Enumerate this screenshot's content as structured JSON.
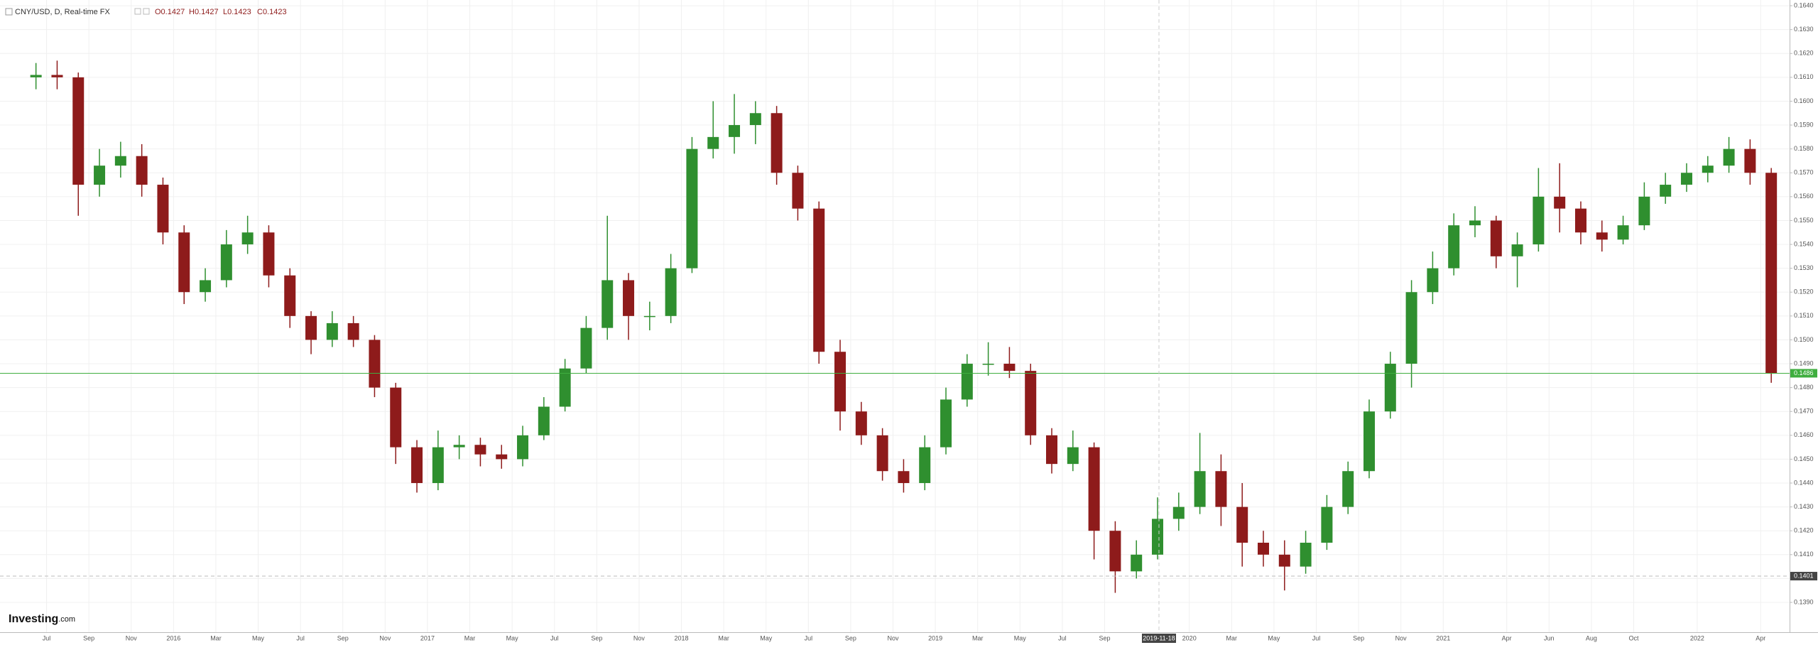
{
  "chart_data": {
    "type": "candlestick",
    "symbol": "CNY/USD, D, Real-time FX",
    "ohlc_legend": [
      "O0.1427",
      "H0.1427",
      "L0.1423",
      "C0.1423"
    ],
    "logo": {
      "brand": "Investing",
      "suffix": ".com"
    },
    "up_color": "#2f8f2f",
    "down_color": "#8e1b1b",
    "grid": true,
    "xlim": [
      "2015-04-25",
      "2022-05-12"
    ],
    "ylim": [
      0.13775,
      0.16424
    ],
    "x": [
      "2015-06",
      "2015-07",
      "2015-08",
      "2015-09",
      "2015-10",
      "2015-11",
      "2015-12",
      "2016-01",
      "2016-02",
      "2016-03",
      "2016-04",
      "2016-05",
      "2016-06",
      "2016-07",
      "2016-08",
      "2016-09",
      "2016-10",
      "2016-11",
      "2016-12",
      "2017-01",
      "2017-02",
      "2017-03",
      "2017-04",
      "2017-05",
      "2017-06",
      "2017-07",
      "2017-08",
      "2017-09",
      "2017-10",
      "2017-11",
      "2017-12",
      "2018-01",
      "2018-02",
      "2018-03",
      "2018-04",
      "2018-05",
      "2018-06",
      "2018-07",
      "2018-08",
      "2018-09",
      "2018-10",
      "2018-11",
      "2018-12",
      "2019-01",
      "2019-02",
      "2019-03",
      "2019-04",
      "2019-05",
      "2019-06",
      "2019-07",
      "2019-08",
      "2019-09",
      "2019-10",
      "2019-11",
      "2019-12",
      "2020-01",
      "2020-02",
      "2020-03",
      "2020-04",
      "2020-05",
      "2020-06",
      "2020-07",
      "2020-08",
      "2020-09",
      "2020-10",
      "2020-11",
      "2020-12",
      "2021-01",
      "2021-02",
      "2021-03",
      "2021-04",
      "2021-05",
      "2021-06",
      "2021-07",
      "2021-08",
      "2021-09",
      "2021-10",
      "2021-11",
      "2021-12",
      "2022-01",
      "2022-02",
      "2022-03",
      "2022-04"
    ],
    "open": [
      0.161,
      0.1611,
      0.161,
      0.1565,
      0.1573,
      0.1577,
      0.1565,
      0.1545,
      0.152,
      0.1525,
      0.154,
      0.1545,
      0.1527,
      0.151,
      0.15,
      0.1507,
      0.15,
      0.148,
      0.1455,
      0.144,
      0.1455,
      0.1456,
      0.1452,
      0.145,
      0.146,
      0.1472,
      0.1488,
      0.1505,
      0.1525,
      0.151,
      0.151,
      0.153,
      0.158,
      0.1585,
      0.159,
      0.1595,
      0.157,
      0.1555,
      0.1495,
      0.147,
      0.146,
      0.1445,
      0.144,
      0.1455,
      0.1475,
      0.149,
      0.149,
      0.1487,
      0.146,
      0.1448,
      0.1455,
      0.142,
      0.1403,
      0.141,
      0.1425,
      0.143,
      0.1445,
      0.143,
      0.1415,
      0.141,
      0.1405,
      0.1415,
      0.143,
      0.1445,
      0.147,
      0.149,
      0.152,
      0.153,
      0.1548,
      0.155,
      0.1535,
      0.154,
      0.156,
      0.1555,
      0.1545,
      0.1542,
      0.1548,
      0.156,
      0.1565,
      0.157,
      0.1573,
      0.158,
      0.157
    ],
    "high": [
      0.1616,
      0.1617,
      0.1612,
      0.158,
      0.1583,
      0.1582,
      0.1568,
      0.1548,
      0.153,
      0.1546,
      0.1552,
      0.1548,
      0.153,
      0.1512,
      0.1512,
      0.151,
      0.1502,
      0.1482,
      0.1458,
      0.1462,
      0.146,
      0.1459,
      0.1456,
      0.1464,
      0.1476,
      0.1492,
      0.151,
      0.1552,
      0.1528,
      0.1516,
      0.1536,
      0.1585,
      0.16,
      0.1603,
      0.16,
      0.1598,
      0.1573,
      0.1558,
      0.15,
      0.1474,
      0.1463,
      0.145,
      0.146,
      0.148,
      0.1494,
      0.1499,
      0.1497,
      0.149,
      0.1463,
      0.1462,
      0.1457,
      0.1424,
      0.1416,
      0.1434,
      0.1436,
      0.1461,
      0.1452,
      0.144,
      0.142,
      0.1416,
      0.142,
      0.1435,
      0.1449,
      0.1475,
      0.1495,
      0.1525,
      0.1537,
      0.1553,
      0.1556,
      0.1552,
      0.1545,
      0.1572,
      0.1574,
      0.1558,
      0.155,
      0.1552,
      0.1566,
      0.157,
      0.1574,
      0.1577,
      0.1585,
      0.1584,
      0.1572
    ],
    "low": [
      0.1605,
      0.1605,
      0.1552,
      0.156,
      0.1568,
      0.156,
      0.154,
      0.1515,
      0.1516,
      0.1522,
      0.1536,
      0.1522,
      0.1505,
      0.1494,
      0.1497,
      0.1497,
      0.1476,
      0.1448,
      0.1436,
      0.1437,
      0.145,
      0.1447,
      0.1446,
      0.1447,
      0.1458,
      0.147,
      0.1486,
      0.15,
      0.15,
      0.1504,
      0.1507,
      0.1528,
      0.1576,
      0.1578,
      0.1582,
      0.1565,
      0.155,
      0.149,
      0.1462,
      0.1456,
      0.1441,
      0.1436,
      0.1437,
      0.1452,
      0.1472,
      0.1485,
      0.1484,
      0.1456,
      0.1444,
      0.1445,
      0.1408,
      0.1394,
      0.14,
      0.1408,
      0.142,
      0.1427,
      0.1422,
      0.1405,
      0.1405,
      0.1395,
      0.1402,
      0.1412,
      0.1427,
      0.1442,
      0.1467,
      0.148,
      0.1515,
      0.1527,
      0.1543,
      0.153,
      0.1522,
      0.1537,
      0.1545,
      0.154,
      0.1537,
      0.154,
      0.1546,
      0.1557,
      0.1562,
      0.1566,
      0.157,
      0.1565,
      0.1482
    ],
    "close": [
      0.1611,
      0.161,
      0.1565,
      0.1573,
      0.1577,
      0.1565,
      0.1545,
      0.152,
      0.1525,
      0.154,
      0.1545,
      0.1527,
      0.151,
      0.15,
      0.1507,
      0.15,
      0.148,
      0.1455,
      0.144,
      0.1455,
      0.1456,
      0.1452,
      0.145,
      0.146,
      0.1472,
      0.1488,
      0.1505,
      0.1525,
      0.151,
      0.151,
      0.153,
      0.158,
      0.1585,
      0.159,
      0.1595,
      0.157,
      0.1555,
      0.1495,
      0.147,
      0.146,
      0.1445,
      0.144,
      0.1455,
      0.1475,
      0.149,
      0.149,
      0.1487,
      0.146,
      0.1448,
      0.1455,
      0.142,
      0.1403,
      0.141,
      0.1425,
      0.143,
      0.1445,
      0.143,
      0.1415,
      0.141,
      0.1405,
      0.1415,
      0.143,
      0.1445,
      0.147,
      0.149,
      0.152,
      0.153,
      0.1548,
      0.155,
      0.1535,
      0.154,
      0.156,
      0.1555,
      0.1545,
      0.1542,
      0.1548,
      0.156,
      0.1565,
      0.157,
      0.1573,
      0.158,
      0.157,
      0.1486
    ],
    "yticks": [
      {
        "value": 0.139,
        "label": "0.1390"
      },
      {
        "value": 0.14,
        "label": "0.1400"
      },
      {
        "value": 0.141,
        "label": "0.1410"
      },
      {
        "value": 0.142,
        "label": "0.1420"
      },
      {
        "value": 0.143,
        "label": "0.1430"
      },
      {
        "value": 0.144,
        "label": "0.1440"
      },
      {
        "value": 0.145,
        "label": "0.1450"
      },
      {
        "value": 0.146,
        "label": "0.1460"
      },
      {
        "value": 0.147,
        "label": "0.1470"
      },
      {
        "value": 0.148,
        "label": "0.1480"
      },
      {
        "value": 0.149,
        "label": "0.1490"
      },
      {
        "value": 0.15,
        "label": "0.1500"
      },
      {
        "value": 0.151,
        "label": "0.1510"
      },
      {
        "value": 0.152,
        "label": "0.1520"
      },
      {
        "value": 0.153,
        "label": "0.1530"
      },
      {
        "value": 0.154,
        "label": "0.1540"
      },
      {
        "value": 0.155,
        "label": "0.1550"
      },
      {
        "value": 0.156,
        "label": "0.1560"
      },
      {
        "value": 0.157,
        "label": "0.1570"
      },
      {
        "value": 0.158,
        "label": "0.1580"
      },
      {
        "value": 0.159,
        "label": "0.1590"
      },
      {
        "value": 0.16,
        "label": "0.1600"
      },
      {
        "value": 0.161,
        "label": "0.1610"
      },
      {
        "value": 0.162,
        "label": "0.1620"
      },
      {
        "value": 0.163,
        "label": "0.1630"
      },
      {
        "value": 0.164,
        "label": "0.1640"
      }
    ],
    "xticks": [
      {
        "value": "2015-07",
        "label": "Jul"
      },
      {
        "value": "2015-09",
        "label": "Sep"
      },
      {
        "value": "2015-11",
        "label": "Nov"
      },
      {
        "value": "2016-01",
        "label": "2016"
      },
      {
        "value": "2016-03",
        "label": "Mar"
      },
      {
        "value": "2016-05",
        "label": "May"
      },
      {
        "value": "2016-07",
        "label": "Jul"
      },
      {
        "value": "2016-09",
        "label": "Sep"
      },
      {
        "value": "2016-11",
        "label": "Nov"
      },
      {
        "value": "2017-01",
        "label": "2017"
      },
      {
        "value": "2017-03",
        "label": "Mar"
      },
      {
        "value": "2017-05",
        "label": "May"
      },
      {
        "value": "2017-07",
        "label": "Jul"
      },
      {
        "value": "2017-09",
        "label": "Sep"
      },
      {
        "value": "2017-11",
        "label": "Nov"
      },
      {
        "value": "2018-01",
        "label": "2018"
      },
      {
        "value": "2018-03",
        "label": "Mar"
      },
      {
        "value": "2018-05",
        "label": "May"
      },
      {
        "value": "2018-07",
        "label": "Jul"
      },
      {
        "value": "2018-09",
        "label": "Sep"
      },
      {
        "value": "2018-11",
        "label": "Nov"
      },
      {
        "value": "2019-01",
        "label": "2019"
      },
      {
        "value": "2019-03",
        "label": "Mar"
      },
      {
        "value": "2019-05",
        "label": "May"
      },
      {
        "value": "2019-07",
        "label": "Jul"
      },
      {
        "value": "2019-09",
        "label": "Sep"
      },
      {
        "value": "2020-01",
        "label": "2020"
      },
      {
        "value": "2020-03",
        "label": "Mar"
      },
      {
        "value": "2020-05",
        "label": "May"
      },
      {
        "value": "2020-07",
        "label": "Jul"
      },
      {
        "value": "2020-09",
        "label": "Sep"
      },
      {
        "value": "2020-11",
        "label": "Nov"
      },
      {
        "value": "2021-01",
        "label": "2021"
      },
      {
        "value": "2021-04",
        "label": "Apr"
      },
      {
        "value": "2021-06",
        "label": "Jun"
      },
      {
        "value": "2021-08",
        "label": "Aug"
      },
      {
        "value": "2021-10",
        "label": "Oct"
      },
      {
        "value": "2022-01",
        "label": "2022"
      },
      {
        "value": "2022-04",
        "label": "Apr"
      }
    ],
    "last_price": {
      "value": 0.1486,
      "label": "0.1486",
      "color": "#3fae3f"
    },
    "crosshair": {
      "date": "2019-11-18",
      "price": {
        "value": 0.1401,
        "label": "0.1401"
      }
    }
  }
}
